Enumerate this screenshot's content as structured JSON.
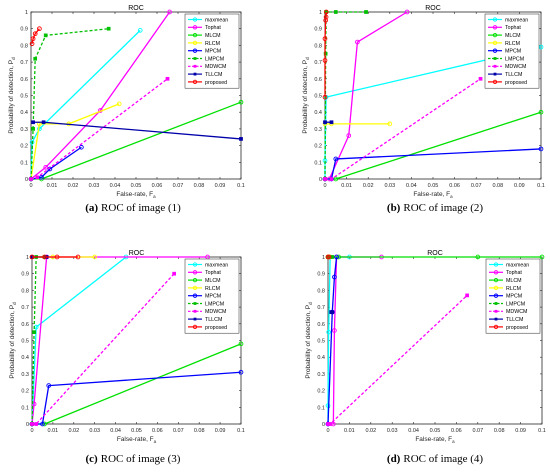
{
  "chart_data": [
    {
      "type": "line",
      "title": "ROC",
      "caption_label": "(a)",
      "caption_text": "ROC of image (1)",
      "xlabel": "False-rate, F",
      "xlabel_sub": "a",
      "ylabel": "Probability of detection, P",
      "ylabel_sub": "d",
      "xlim": [
        0,
        0.1
      ],
      "ylim": [
        0,
        1
      ],
      "xticks": [
        "0",
        "0.01",
        "0.02",
        "0.03",
        "0.04",
        "0.05",
        "0.06",
        "0.07",
        "0.08",
        "0.09",
        "0.1"
      ],
      "yticks": [
        "0",
        "0.1",
        "0.2",
        "0.3",
        "0.4",
        "0.5",
        "0.6",
        "0.7",
        "0.8",
        "0.9",
        "1"
      ],
      "legend_position": "top-right",
      "series": [
        {
          "name": "maxmean",
          "color": "#00FFFF",
          "marker": "o",
          "dashed": false,
          "points": [
            [
              0,
              0
            ],
            [
              0.0005,
              0.22
            ],
            [
              0.004,
              0.3
            ],
            [
              0.052,
              0.89
            ]
          ]
        },
        {
          "name": "Tophat",
          "color": "#FF00FF",
          "marker": "o",
          "dashed": false,
          "points": [
            [
              0,
              0
            ],
            [
              0.007,
              0.07
            ],
            [
              0.033,
              0.41
            ],
            [
              0.066,
              1
            ]
          ]
        },
        {
          "name": "MLCM",
          "color": "#00E000",
          "marker": "o",
          "dashed": false,
          "points": [
            [
              0,
              0
            ],
            [
              0.005,
              0
            ],
            [
              0.1,
              0.46
            ]
          ]
        },
        {
          "name": "RLCM",
          "color": "#FFFF00",
          "marker": "o",
          "dashed": false,
          "points": [
            [
              0,
              0
            ],
            [
              0.004,
              0.33
            ],
            [
              0.018,
              0.33
            ],
            [
              0.042,
              0.45
            ]
          ]
        },
        {
          "name": "MPCM",
          "color": "#0000FF",
          "marker": "o",
          "dashed": false,
          "points": [
            [
              0,
              0
            ],
            [
              0.005,
              0.01
            ],
            [
              0.009,
              0.06
            ],
            [
              0.024,
              0.19
            ]
          ]
        },
        {
          "name": "LMPCM",
          "color": "#00C000",
          "marker": "s",
          "dashed": true,
          "points": [
            [
              0,
              0
            ],
            [
              0.001,
              0.3
            ],
            [
              0.002,
              0.72
            ],
            [
              0.007,
              0.86
            ],
            [
              0.037,
              0.9
            ]
          ]
        },
        {
          "name": "MDWCM",
          "color": "#FF00FF",
          "marker": "s",
          "dashed": true,
          "points": [
            [
              0,
              0
            ],
            [
              0.003,
              0.01
            ],
            [
              0.065,
              0.6
            ]
          ]
        },
        {
          "name": "TLLCM",
          "color": "#0000AA",
          "marker": "s",
          "dashed": false,
          "points": [
            [
              0.001,
              0.34
            ],
            [
              0.006,
              0.34
            ],
            [
              0.1,
              0.24
            ]
          ]
        },
        {
          "name": "proposed",
          "color": "#FF0000",
          "marker": "o",
          "dashed": false,
          "points": [
            [
              0.0005,
              0.81
            ],
            [
              0.001,
              0.84
            ],
            [
              0.002,
              0.87
            ],
            [
              0.004,
              0.9
            ]
          ]
        }
      ]
    },
    {
      "type": "line",
      "title": "ROC",
      "caption_label": "(b)",
      "caption_text": "ROC of image (2)",
      "xlabel": "False-rate, F",
      "xlabel_sub": "a",
      "ylabel": "Probability of detection, P",
      "ylabel_sub": "d",
      "xlim": [
        0,
        0.1
      ],
      "ylim": [
        0,
        1
      ],
      "xticks": [
        "0",
        "0.01",
        "0.02",
        "0.03",
        "0.04",
        "0.05",
        "0.06",
        "0.07",
        "0.08",
        "0.09",
        "0.1"
      ],
      "yticks": [
        "0",
        "0.1",
        "0.2",
        "0.3",
        "0.4",
        "0.5",
        "0.6",
        "0.7",
        "0.8",
        "0.9",
        "1"
      ],
      "legend_position": "top-right",
      "series": [
        {
          "name": "maxmean",
          "color": "#00FFFF",
          "marker": "o",
          "dashed": false,
          "points": [
            [
              0,
              0
            ],
            [
              0,
              0.11
            ],
            [
              0.0005,
              0.49
            ],
            [
              0.1,
              0.79
            ]
          ]
        },
        {
          "name": "Tophat",
          "color": "#FF00FF",
          "marker": "o",
          "dashed": false,
          "points": [
            [
              0,
              0
            ],
            [
              0.002,
              0
            ],
            [
              0.011,
              0.26
            ],
            [
              0.015,
              0.82
            ],
            [
              0.038,
              1
            ]
          ]
        },
        {
          "name": "MLCM",
          "color": "#00E000",
          "marker": "o",
          "dashed": false,
          "points": [
            [
              0,
              0
            ],
            [
              0.005,
              0
            ],
            [
              0.1,
              0.4
            ]
          ]
        },
        {
          "name": "RLCM",
          "color": "#FFFF00",
          "marker": "o",
          "dashed": false,
          "points": [
            [
              0,
              0.33
            ],
            [
              0.003,
              0.33
            ],
            [
              0.03,
              0.33
            ]
          ]
        },
        {
          "name": "MPCM",
          "color": "#0000FF",
          "marker": "o",
          "dashed": false,
          "points": [
            [
              0,
              0
            ],
            [
              0.003,
              0
            ],
            [
              0.005,
              0.12
            ],
            [
              0.1,
              0.18
            ]
          ]
        },
        {
          "name": "LMPCM",
          "color": "#00C000",
          "marker": "s",
          "dashed": true,
          "points": [
            [
              0,
              0
            ],
            [
              0.0003,
              0.75
            ],
            [
              0.0005,
              1
            ],
            [
              0.005,
              1
            ],
            [
              0.019,
              1
            ]
          ]
        },
        {
          "name": "MDWCM",
          "color": "#FF00FF",
          "marker": "s",
          "dashed": true,
          "points": [
            [
              0,
              0
            ],
            [
              0.003,
              0
            ],
            [
              0.072,
              0.6
            ]
          ]
        },
        {
          "name": "TLLCM",
          "color": "#0000AA",
          "marker": "s",
          "dashed": false,
          "points": [
            [
              0,
              0.34
            ],
            [
              0.003,
              0.34
            ]
          ]
        },
        {
          "name": "proposed",
          "color": "#FF0000",
          "marker": "o",
          "dashed": false,
          "points": [
            [
              0,
              0.49
            ],
            [
              0,
              0.71
            ],
            [
              0,
              0.84
            ],
            [
              0.0003,
              0.95
            ],
            [
              0.0005,
              0.97
            ],
            [
              0.0006,
              1
            ]
          ]
        }
      ]
    },
    {
      "type": "line",
      "title": "ROC",
      "caption_label": "(c)",
      "caption_text": "ROC of image (3)",
      "xlabel": "False-rate, F",
      "xlabel_sub": "a",
      "ylabel": "Probability of detection, P",
      "ylabel_sub": "d",
      "xlim": [
        0,
        0.1
      ],
      "ylim": [
        0,
        1
      ],
      "xticks": [
        "0",
        "0.01",
        "0.02",
        "0.03",
        "0.04",
        "0.05",
        "0.06",
        "0.07",
        "0.08",
        "0.09",
        "0.1"
      ],
      "yticks": [
        "0",
        "0.1",
        "0.2",
        "0.3",
        "0.4",
        "0.5",
        "0.6",
        "0.7",
        "0.8",
        "0.9",
        "1"
      ],
      "legend_position": "top-right",
      "series": [
        {
          "name": "maxmean",
          "color": "#00FFFF",
          "marker": "o",
          "dashed": false,
          "points": [
            [
              0,
              0
            ],
            [
              0.002,
              0.58
            ],
            [
              0.045,
              1
            ]
          ]
        },
        {
          "name": "Tophat",
          "color": "#FF00FF",
          "marker": "o",
          "dashed": false,
          "points": [
            [
              0,
              0
            ],
            [
              0.001,
              0.12
            ],
            [
              0.007,
              1
            ],
            [
              0.084,
              1
            ]
          ]
        },
        {
          "name": "MLCM",
          "color": "#00E000",
          "marker": "o",
          "dashed": false,
          "points": [
            [
              0,
              0
            ],
            [
              0.006,
              0
            ],
            [
              0.1,
              0.48
            ]
          ]
        },
        {
          "name": "RLCM",
          "color": "#FFFF00",
          "marker": "o",
          "dashed": false,
          "points": [
            [
              0,
              1
            ],
            [
              0.01,
              1
            ],
            [
              0.03,
              1
            ]
          ]
        },
        {
          "name": "MPCM",
          "color": "#0000FF",
          "marker": "o",
          "dashed": false,
          "points": [
            [
              0,
              0
            ],
            [
              0.005,
              0
            ],
            [
              0.008,
              0.23
            ],
            [
              0.1,
              0.31
            ]
          ]
        },
        {
          "name": "LMPCM",
          "color": "#00C000",
          "marker": "s",
          "dashed": true,
          "points": [
            [
              0,
              0
            ],
            [
              0.001,
              0.55
            ],
            [
              0.002,
              1
            ],
            [
              0.006,
              1
            ]
          ]
        },
        {
          "name": "MDWCM",
          "color": "#FF00FF",
          "marker": "s",
          "dashed": true,
          "points": [
            [
              0,
              0
            ],
            [
              0.002,
              0
            ],
            [
              0.068,
              0.9
            ]
          ]
        },
        {
          "name": "TLLCM",
          "color": "#0000AA",
          "marker": "s",
          "dashed": false,
          "points": [
            [
              0,
              1
            ],
            [
              0.007,
              1
            ]
          ]
        },
        {
          "name": "proposed",
          "color": "#FF0000",
          "marker": "o",
          "dashed": false,
          "points": [
            [
              0,
              1
            ],
            [
              0.006,
              1
            ],
            [
              0.012,
              1
            ],
            [
              0.022,
              1
            ]
          ]
        }
      ]
    },
    {
      "type": "line",
      "title": "ROC",
      "caption_label": "(d)",
      "caption_text": "ROC of image (4)",
      "xlabel": "False-rate, F",
      "xlabel_sub": "a",
      "ylabel": "Probability of detection, P",
      "ylabel_sub": "d",
      "xlim": [
        0,
        0.1
      ],
      "ylim": [
        0,
        1
      ],
      "xticks": [
        "0",
        "0.01",
        "0.02",
        "0.03",
        "0.04",
        "0.05",
        "0.06",
        "0.07",
        "0.08",
        "0.09",
        "0.1"
      ],
      "yticks": [
        "0",
        "0.1",
        "0.2",
        "0.3",
        "0.4",
        "0.5",
        "0.6",
        "0.7",
        "0.8",
        "0.9",
        "1"
      ],
      "legend_position": "top-right",
      "series": [
        {
          "name": "maxmean",
          "color": "#00FFFF",
          "marker": "o",
          "dashed": false,
          "points": [
            [
              0,
              0
            ],
            [
              0,
              0.11
            ],
            [
              0.0003,
              0.55
            ],
            [
              0.001,
              1
            ],
            [
              0.01,
              1
            ]
          ]
        },
        {
          "name": "Tophat",
          "color": "#FF00FF",
          "marker": "o",
          "dashed": false,
          "points": [
            [
              0,
              0
            ],
            [
              0.0025,
              0
            ],
            [
              0.003,
              0.56
            ],
            [
              0.004,
              1
            ],
            [
              0.025,
              1
            ]
          ]
        },
        {
          "name": "MLCM",
          "color": "#00E000",
          "marker": "o",
          "dashed": false,
          "points": [
            [
              0,
              1
            ],
            [
              0.005,
              1
            ],
            [
              0.07,
              1
            ],
            [
              0.1,
              1
            ]
          ]
        },
        {
          "name": "RLCM",
          "color": "#FFFF00",
          "marker": "o",
          "dashed": false,
          "points": [
            [
              0,
              1
            ],
            [
              0.001,
              1
            ]
          ]
        },
        {
          "name": "MPCM",
          "color": "#0000FF",
          "marker": "o",
          "dashed": false,
          "points": [
            [
              0,
              0
            ],
            [
              0.002,
              0.67
            ],
            [
              0.003,
              0.88
            ],
            [
              0.004,
              1
            ]
          ]
        },
        {
          "name": "LMPCM",
          "color": "#00C000",
          "marker": "s",
          "dashed": true,
          "points": [
            [
              0,
              1
            ],
            [
              0.002,
              1
            ]
          ]
        },
        {
          "name": "MDWCM",
          "color": "#FF00FF",
          "marker": "s",
          "dashed": true,
          "points": [
            [
              0,
              0
            ],
            [
              0.001,
              0
            ],
            [
              0.065,
              0.77
            ]
          ]
        },
        {
          "name": "TLLCM",
          "color": "#0000AA",
          "marker": "s",
          "dashed": false,
          "points": [
            [
              0.0015,
              0.67
            ],
            [
              0.002,
              0.67
            ]
          ]
        },
        {
          "name": "proposed",
          "color": "#FF0000",
          "marker": "o",
          "dashed": false,
          "points": [
            [
              0,
              1
            ],
            [
              0.0005,
              1
            ]
          ]
        }
      ]
    }
  ]
}
